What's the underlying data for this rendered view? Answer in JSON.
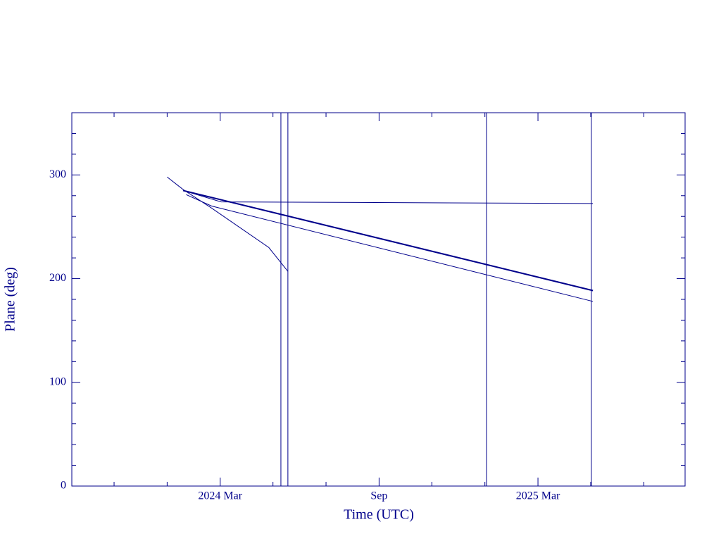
{
  "chart_data": {
    "type": "line",
    "xlabel": "Time (UTC)",
    "ylabel": "Plane (deg)",
    "xlim": [
      2023.7,
      2025.63
    ],
    "ylim": [
      0,
      360
    ],
    "xticks": [
      {
        "value": 2024.167,
        "label": "2024 Mar"
      },
      {
        "value": 2024.667,
        "label": "Sep"
      },
      {
        "value": 2025.167,
        "label": "2025 Mar"
      }
    ],
    "xminorticks": [
      2023.833,
      2024.0,
      2024.333,
      2024.5,
      2024.833,
      2025.0,
      2025.333,
      2025.5
    ],
    "yticks": [
      0,
      100,
      200,
      300
    ],
    "yminorticks": [
      20,
      40,
      60,
      80,
      120,
      140,
      160,
      180,
      220,
      240,
      260,
      280,
      320,
      340
    ],
    "color": "#00008b",
    "series": [
      {
        "x": [
          2024.05,
          2025.34
        ],
        "values": [
          285,
          188.5
        ],
        "width": 2
      },
      {
        "x": [
          2024.0,
          2024.05,
          2024.14,
          2024.32,
          2024.38
        ],
        "values": [
          298,
          286,
          268,
          230,
          207
        ],
        "width": 1
      },
      {
        "x": [
          2024.06,
          2024.14,
          2025.34
        ],
        "values": [
          281,
          270,
          178
        ],
        "width": 1
      },
      {
        "x": [
          2024.05,
          2024.17,
          2025.34
        ],
        "values": [
          285,
          274,
          272.5
        ],
        "width": 1
      }
    ],
    "vlines": [
      2024.358,
      2024.38,
      2025.005,
      2025.335
    ]
  }
}
